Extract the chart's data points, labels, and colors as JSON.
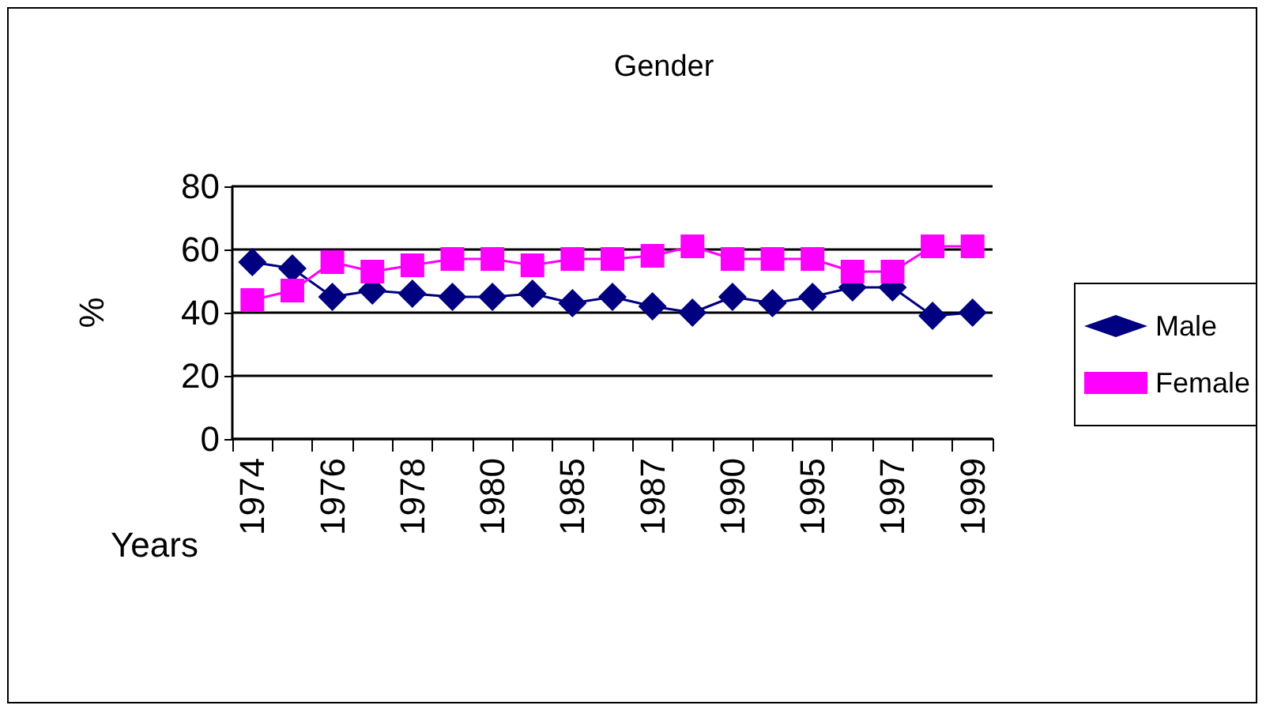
{
  "chart_data": {
    "type": "line",
    "title": "Gender",
    "xlabel": "Years",
    "ylabel": "%",
    "categories": [
      "1974",
      null,
      "1976",
      null,
      "1978",
      null,
      "1980",
      null,
      "1985",
      null,
      "1987",
      null,
      "1990",
      null,
      "1995",
      null,
      "1997",
      null,
      "1999"
    ],
    "series": [
      {
        "name": "Male",
        "color": "#000080",
        "marker": "diamond",
        "values": [
          56,
          54,
          45,
          47,
          46,
          45,
          45,
          46,
          43,
          45,
          42,
          40,
          45,
          43,
          45,
          48,
          48,
          39,
          40
        ]
      },
      {
        "name": "Female",
        "color": "#ff00ff",
        "marker": "square",
        "values": [
          44,
          47,
          56,
          53,
          55,
          57,
          57,
          55,
          57,
          57,
          58,
          61,
          57,
          57,
          57,
          53,
          53,
          61,
          61
        ]
      }
    ],
    "ylim": [
      0,
      80
    ],
    "yticks": [
      0,
      20,
      40,
      60,
      80
    ],
    "grid": "y",
    "legend": "right",
    "line_style": "solid"
  }
}
